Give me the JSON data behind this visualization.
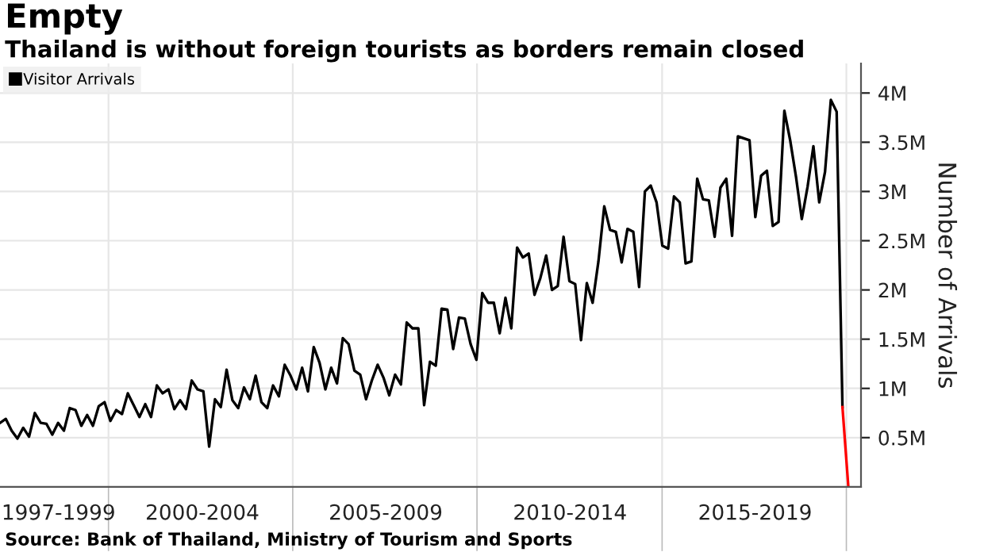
{
  "chart_data": {
    "type": "line",
    "title": "Empty",
    "subtitle": "Thailand is without foreign tourists as borders remain closed",
    "ylabel": "Number of Arrivals",
    "annotations": [
      "1997-1999",
      "2000-2004",
      "2005-2009",
      "2010-2014",
      "2015-2019",
      "Source: Bank of Thailand, Ministry of Tourism and Sports"
    ],
    "categories": [
      null,
      null,
      null,
      null,
      null,
      null,
      null,
      null,
      null,
      null,
      null,
      null,
      null,
      null,
      null,
      null,
      null,
      null,
      null,
      null,
      null,
      null,
      null,
      null,
      null,
      null,
      null,
      null,
      null,
      null,
      null,
      null,
      null,
      null,
      null,
      null,
      null,
      null,
      null,
      null,
      null,
      null,
      null,
      null,
      null,
      null,
      null,
      null,
      null,
      null,
      null,
      null,
      null,
      null,
      null,
      null,
      null,
      null,
      null,
      null,
      null,
      null,
      null,
      null,
      null,
      null,
      null,
      null,
      null,
      null,
      null,
      null,
      null,
      null,
      null,
      null,
      null,
      null,
      null,
      null,
      null,
      null,
      null,
      null,
      null,
      null,
      null,
      null,
      null,
      null,
      null,
      null,
      null,
      null,
      null,
      null,
      null,
      null,
      null,
      null,
      null,
      null,
      null,
      null,
      null,
      null,
      null,
      null,
      null,
      null,
      null,
      null,
      null,
      null,
      null,
      null,
      null,
      null,
      null,
      null,
      null,
      null,
      null,
      null,
      null,
      null,
      null,
      null,
      null,
      null,
      null,
      null,
      null,
      null,
      null,
      null,
      null,
      null,
      null,
      null,
      null,
      null,
      null,
      null,
      null,
      null,
      null
    ],
    "ylim": [
      0,
      4.3
    ],
    "yticks": [
      {
        "value": 0.5,
        "label": "0.5M"
      },
      {
        "value": 1,
        "label": "1M"
      },
      {
        "value": 1.5,
        "label": "1.5M"
      },
      {
        "value": 2,
        "label": "2M"
      },
      {
        "value": 2.5,
        "label": "2.5M"
      },
      {
        "value": 3,
        "label": "3M"
      },
      {
        "value": 3.5,
        "label": "3.5M"
      },
      {
        "value": 4,
        "label": "4M"
      }
    ],
    "tick_labels": "y",
    "grid": true,
    "legend": "top left",
    "marker": "none",
    "line_style": "solid",
    "series": [
      {
        "name": "Visitor Arrivals",
        "color": "#000000",
        "values": [
          0.65,
          0.69,
          0.57,
          0.49,
          0.6,
          0.51,
          0.75,
          0.65,
          0.64,
          0.53,
          0.65,
          0.57,
          0.8,
          0.78,
          0.62,
          0.73,
          0.62,
          0.82,
          0.86,
          0.67,
          0.78,
          0.74,
          0.95,
          0.83,
          0.71,
          0.84,
          0.71,
          1.03,
          0.95,
          0.99,
          0.79,
          0.88,
          0.79,
          1.08,
          0.99,
          0.97,
          0.41,
          0.89,
          0.81,
          1.19,
          0.88,
          0.8,
          1.01,
          0.89,
          1.13,
          0.86,
          0.8,
          1.03,
          0.92,
          1.24,
          1.13,
          0.99,
          1.21,
          0.97,
          1.42,
          1.26,
          0.99,
          1.21,
          1.05,
          1.51,
          1.45,
          1.18,
          1.14,
          0.89,
          1.08,
          1.24,
          1.11,
          0.93,
          1.14,
          1.04,
          1.67,
          1.61,
          1.61,
          0.83,
          1.27,
          1.23,
          1.81,
          1.8,
          1.4,
          1.72,
          1.71,
          1.45,
          1.29,
          1.97,
          1.87,
          1.87,
          1.56,
          1.92,
          1.61,
          2.43,
          2.33,
          2.37,
          1.95,
          2.12,
          2.35,
          2.0,
          2.04,
          2.54,
          2.09,
          2.06,
          1.49,
          2.07,
          1.87,
          2.29,
          2.85,
          2.61,
          2.59,
          2.28,
          2.62,
          2.59,
          2.03,
          3.0,
          3.06,
          2.89,
          2.45,
          2.42,
          2.95,
          2.89,
          2.27,
          2.29,
          3.13,
          2.92,
          2.91,
          2.54,
          3.04,
          3.13,
          2.55,
          3.56,
          3.54,
          3.52,
          2.74,
          3.16,
          3.21,
          2.65,
          2.69,
          3.82,
          3.52,
          3.15,
          2.72,
          3.05,
          3.46,
          2.89,
          3.2,
          3.93,
          3.81,
          0.81,
          null
        ]
      },
      {
        "color": "#ff0000",
        "values": [
          null,
          null,
          null,
          null,
          null,
          null,
          null,
          null,
          null,
          null,
          null,
          null,
          null,
          null,
          null,
          null,
          null,
          null,
          null,
          null,
          null,
          null,
          null,
          null,
          null,
          null,
          null,
          null,
          null,
          null,
          null,
          null,
          null,
          null,
          null,
          null,
          null,
          null,
          null,
          null,
          null,
          null,
          null,
          null,
          null,
          null,
          null,
          null,
          null,
          null,
          null,
          null,
          null,
          null,
          null,
          null,
          null,
          null,
          null,
          null,
          null,
          null,
          null,
          null,
          null,
          null,
          null,
          null,
          null,
          null,
          null,
          null,
          null,
          null,
          null,
          null,
          null,
          null,
          null,
          null,
          null,
          null,
          null,
          null,
          null,
          null,
          null,
          null,
          null,
          null,
          null,
          null,
          null,
          null,
          null,
          null,
          null,
          null,
          null,
          null,
          null,
          null,
          null,
          null,
          null,
          null,
          null,
          null,
          null,
          null,
          null,
          null,
          null,
          null,
          null,
          null,
          null,
          null,
          null,
          null,
          null,
          null,
          null,
          null,
          null,
          null,
          null,
          null,
          null,
          null,
          null,
          null,
          null,
          null,
          null,
          null,
          null,
          null,
          null,
          null,
          null,
          null,
          null,
          null,
          null,
          0.81,
          0.01
        ]
      }
    ]
  }
}
